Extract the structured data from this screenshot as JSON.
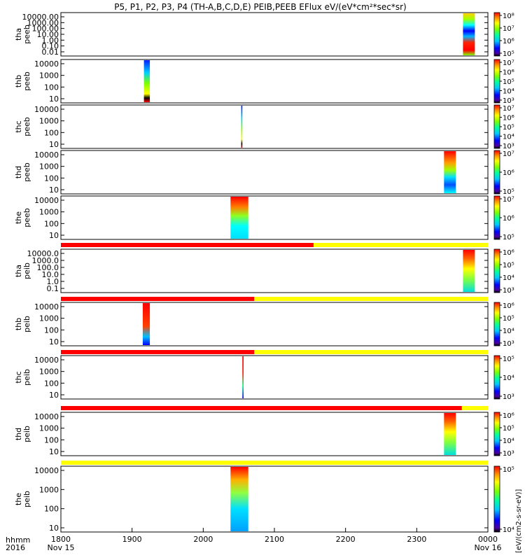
{
  "title": "P5, P1, P2, P3, P4 (TH-A,B,C,D,E) PEIB,PEEB EFlux eV/(eV*cm²*sec*sr)",
  "colorbar_unit_label": "[eV/(cm2-s-sr-eV)]",
  "corner_labels": [
    "hhmm",
    "2016"
  ],
  "chart_data": {
    "type": "heatmap",
    "x_axis": {
      "range": [
        "1800",
        "0000"
      ],
      "ticks": [
        "1800",
        "1900",
        "2000",
        "2100",
        "2200",
        "2300",
        "0000"
      ],
      "tick_dates": [
        "Nov 15",
        "",
        "",
        "",
        "",
        "",
        "Nov 16"
      ]
    },
    "panels": [
      {
        "label_top": "tha",
        "label_bottom": "peeb",
        "yticks": [
          "10000.00",
          "1000.00",
          "100.00",
          "10.00",
          "1.00",
          "0.10",
          "0.01"
        ],
        "time_ranges": [
          [
            "2339",
            "2349"
          ]
        ],
        "cbar_ticks": [
          "10⁸",
          "10⁷",
          "10⁶",
          "10⁵"
        ],
        "status_bar": null
      },
      {
        "label_top": "thb",
        "label_bottom": "peeb",
        "yticks": [
          "10000",
          "1000",
          "100",
          "10"
        ],
        "time_ranges": [
          [
            "1910",
            "1915"
          ]
        ],
        "cbar_ticks": [
          "10⁷",
          "10⁶",
          "10⁵",
          "10⁴",
          "10³"
        ],
        "status_bar": null
      },
      {
        "label_top": "thc",
        "label_bottom": "peeb",
        "yticks": [
          "10000",
          "1000",
          "100",
          "10"
        ],
        "time_ranges": [
          [
            "2032",
            "2033"
          ]
        ],
        "cbar_ticks": [
          "10⁷",
          "10⁶",
          "10⁵",
          "10⁴",
          "10³"
        ],
        "status_bar": null
      },
      {
        "label_top": "thd",
        "label_bottom": "peeb",
        "yticks": [
          "10000",
          "1000",
          "100",
          "10"
        ],
        "time_ranges": [
          [
            "2323",
            "2333"
          ]
        ],
        "cbar_ticks": [
          "10⁷",
          "10⁶",
          "10⁵"
        ],
        "status_bar": null
      },
      {
        "label_top": "the",
        "label_bottom": "peeb",
        "yticks": [
          "10000",
          "1000",
          "100",
          "10"
        ],
        "time_ranges": [
          [
            "2023",
            "2038"
          ]
        ],
        "cbar_ticks": [
          "10⁷",
          "10⁶",
          "10⁵"
        ],
        "status_bar": null
      },
      {
        "label_top": "tha",
        "label_bottom": "peib",
        "yticks": [
          "10000.0",
          "1000.0",
          "100.0",
          "10.0",
          "1.0",
          "0.1"
        ],
        "time_ranges": [
          [
            "2339",
            "2349"
          ]
        ],
        "cbar_ticks": [
          "10⁶",
          "10⁵",
          "10⁴",
          "10³"
        ],
        "status_bar": {
          "red_until": "2133"
        }
      },
      {
        "label_top": "thb",
        "label_bottom": "peib",
        "yticks": [
          "10000",
          "1000",
          "100",
          "10"
        ],
        "time_ranges": [
          [
            "1909",
            "1915"
          ]
        ],
        "cbar_ticks": [
          "10⁶",
          "10⁵",
          "10⁴",
          "10³"
        ],
        "status_bar": {
          "red_until": "2043"
        }
      },
      {
        "label_top": "thc",
        "label_bottom": "peib",
        "yticks": [
          "10000",
          "1000",
          "100",
          "10"
        ],
        "time_ranges": [
          [
            "2033",
            "2034"
          ]
        ],
        "cbar_ticks": [
          "10⁵",
          "10⁴",
          "10³"
        ],
        "status_bar": {
          "red_until": "2043"
        }
      },
      {
        "label_top": "thd",
        "label_bottom": "peib",
        "yticks": [
          "10000",
          "1000",
          "100",
          "10"
        ],
        "time_ranges": [
          [
            "2323",
            "2333"
          ]
        ],
        "cbar_ticks": [
          "10⁶",
          "10⁵",
          "10⁴",
          "10³"
        ],
        "status_bar": {
          "red_until": "2338"
        }
      },
      {
        "label_top": "the",
        "label_bottom": "peib",
        "yticks": [
          "10000",
          "1000",
          "100",
          "10"
        ],
        "time_ranges": [
          [
            "2023",
            "2038"
          ]
        ],
        "cbar_ticks": [
          "10⁵",
          "10⁴"
        ],
        "status_bar": {
          "red_until": null
        }
      }
    ]
  }
}
